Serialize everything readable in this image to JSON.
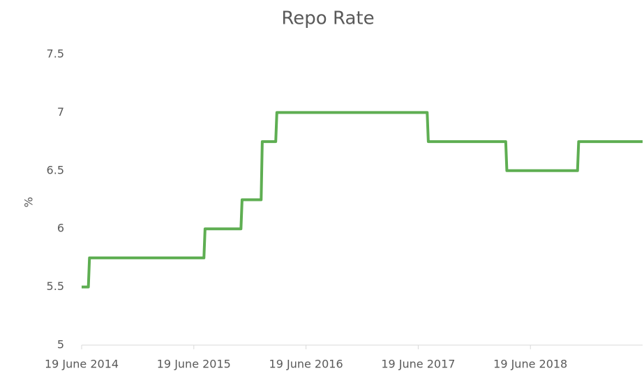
{
  "chart_data": {
    "type": "line",
    "title": "Repo Rate",
    "y_label": "%",
    "x": [
      2014.47,
      2014.53,
      2014.54,
      2015.56,
      2015.57,
      2015.89,
      2015.9,
      2016.07,
      2016.08,
      2016.2,
      2016.21,
      2017.55,
      2017.56,
      2018.25,
      2018.26,
      2018.89,
      2018.9,
      2019.47
    ],
    "values": [
      5.5,
      5.5,
      5.75,
      5.75,
      6,
      6,
      6.25,
      6.25,
      6.75,
      6.75,
      7,
      7,
      6.75,
      6.75,
      6.5,
      6.5,
      6.75,
      6.75
    ],
    "color": "#5eae52",
    "xlim": [
      2014.47,
      2019.47
    ],
    "xticks": [
      {
        "value": 2014.47,
        "label": "19 June 2014"
      },
      {
        "value": 2015.47,
        "label": "19 June 2015"
      },
      {
        "value": 2016.47,
        "label": "19 June 2016"
      },
      {
        "value": 2017.47,
        "label": "19 June 2017"
      },
      {
        "value": 2018.47,
        "label": "19 June 2018"
      }
    ],
    "ylim": [
      5,
      7.5
    ],
    "yticks": [
      5,
      5.5,
      6,
      6.5,
      7,
      7.5
    ],
    "grid": false
  }
}
